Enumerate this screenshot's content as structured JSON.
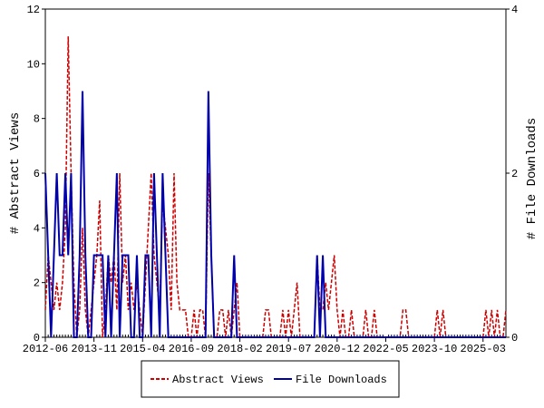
{
  "chart_data": {
    "type": "line",
    "y_label": "# Abstract Views",
    "y2_label": "# File Downloads",
    "categories": [
      "2012-06",
      null,
      null,
      null,
      null,
      null,
      null,
      null,
      null,
      null,
      null,
      null,
      null,
      null,
      null,
      null,
      null,
      "2013-11",
      null,
      null,
      null,
      null,
      null,
      null,
      null,
      null,
      null,
      null,
      null,
      null,
      null,
      null,
      null,
      null,
      "2015-04",
      null,
      null,
      null,
      null,
      null,
      null,
      null,
      null,
      null,
      null,
      null,
      null,
      null,
      null,
      null,
      null,
      "2016-09",
      null,
      null,
      null,
      null,
      null,
      null,
      null,
      null,
      null,
      null,
      null,
      null,
      null,
      null,
      null,
      null,
      "2018-02",
      null,
      null,
      null,
      null,
      null,
      null,
      null,
      null,
      null,
      null,
      null,
      null,
      null,
      null,
      null,
      null,
      "2019-07",
      null,
      null,
      null,
      null,
      null,
      null,
      null,
      null,
      null,
      null,
      null,
      null,
      null,
      null,
      null,
      null,
      "2020-12",
      null,
      null,
      null,
      null,
      null,
      null,
      null,
      null,
      null,
      null,
      null,
      null,
      null,
      null,
      null,
      null,
      "2022-05",
      null,
      null,
      null,
      null,
      null,
      null,
      null,
      null,
      null,
      null,
      null,
      null,
      null,
      null,
      null,
      null,
      "2023-10",
      null,
      null,
      null,
      null,
      null,
      null,
      null,
      null,
      null,
      null,
      null,
      null,
      null,
      null,
      null,
      null,
      "2025-03",
      null,
      null,
      null,
      null,
      null,
      null,
      null,
      null
    ],
    "series": [
      {
        "name": "Abstract Views",
        "color": "#cc0000",
        "axis": "y",
        "values": [
          1,
          3,
          2,
          1,
          2,
          1,
          2,
          4,
          11,
          6,
          2,
          0,
          1,
          4,
          1,
          0,
          1,
          2,
          3,
          5,
          0,
          1,
          3,
          2,
          3,
          1,
          6,
          2,
          3,
          1,
          2,
          1,
          2,
          1,
          0,
          2,
          4,
          6,
          3,
          2,
          1,
          5,
          4,
          3,
          1,
          6,
          2,
          1,
          1,
          1,
          0,
          0,
          1,
          0,
          1,
          1,
          0,
          6,
          3,
          0,
          0,
          1,
          1,
          0,
          1,
          0,
          1,
          2,
          0,
          0,
          0,
          0,
          0,
          0,
          0,
          0,
          0,
          1,
          1,
          0,
          0,
          0,
          0,
          1,
          0,
          1,
          0,
          1,
          2,
          0,
          0,
          0,
          0,
          0,
          0,
          3,
          1,
          1,
          2,
          1,
          2,
          3,
          1,
          0,
          1,
          0,
          0,
          1,
          0,
          0,
          0,
          0,
          1,
          0,
          0,
          1,
          0,
          0,
          0,
          0,
          0,
          0,
          0,
          0,
          0,
          1,
          1,
          0,
          0,
          0,
          0,
          0,
          0,
          0,
          0,
          0,
          0,
          1,
          0,
          1,
          0,
          0,
          0,
          0,
          0,
          0,
          0,
          0,
          0,
          0,
          0,
          0,
          0,
          0,
          1,
          0,
          1,
          0,
          1,
          0,
          0,
          1
        ]
      },
      {
        "name": "File Downloads",
        "color": "#0000aa",
        "axis": "y2",
        "values": [
          2,
          1,
          0,
          1,
          2,
          1,
          1,
          2,
          1,
          2,
          0,
          0,
          1,
          3,
          1,
          0,
          0,
          1,
          1,
          1,
          1,
          0,
          1,
          0,
          1,
          2,
          0,
          1,
          1,
          1,
          0,
          0,
          1,
          0,
          0,
          1,
          1,
          0,
          2,
          1,
          0,
          2,
          1,
          0,
          0,
          0,
          0,
          0,
          0,
          0,
          0,
          0,
          0,
          0,
          0,
          0,
          0,
          3,
          1,
          0,
          0,
          0,
          0,
          0,
          0,
          0,
          1,
          0,
          0,
          0,
          0,
          0,
          0,
          0,
          0,
          0,
          0,
          0,
          0,
          0,
          0,
          0,
          0,
          0,
          0,
          0,
          0,
          0,
          0,
          0,
          0,
          0,
          0,
          0,
          0,
          1,
          0,
          1,
          0,
          0,
          0,
          0,
          0,
          0,
          0,
          0,
          0,
          0,
          0,
          0,
          0,
          0,
          0,
          0,
          0,
          0,
          0,
          0,
          0,
          0,
          0,
          0,
          0,
          0,
          0,
          0,
          0,
          0,
          0,
          0,
          0,
          0,
          0,
          0,
          0,
          0,
          0,
          0,
          0,
          0,
          0,
          0,
          0,
          0,
          0,
          0,
          0,
          0,
          0,
          0,
          0,
          0,
          0,
          0,
          0,
          0,
          0,
          0,
          0,
          0,
          0,
          0
        ]
      }
    ],
    "ylim": [
      0,
      12
    ],
    "yticks": [
      0,
      2,
      4,
      6,
      8,
      10,
      12
    ],
    "y2lim": [
      0,
      4
    ],
    "y2ticks": [
      0,
      2,
      4
    ],
    "legend": "bottom"
  }
}
